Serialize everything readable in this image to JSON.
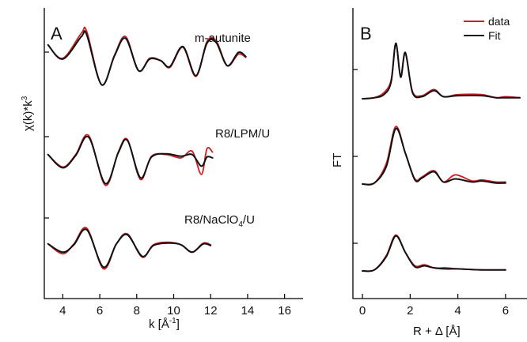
{
  "colors": {
    "data": "#cc1f24",
    "fit": "#111111",
    "axis": "#000000"
  },
  "panel_a": {
    "letter": "A",
    "ylabel_main": "χ(k)*k",
    "ylabel_sup": "3",
    "xlabel_main": "k [Å",
    "xlabel_sup": "-1",
    "xlabel_end": "]",
    "xticks": [
      "4",
      "6",
      "8",
      "10",
      "12",
      "14",
      "16"
    ],
    "labels": {
      "top": "m-autunite",
      "mid": "R8/LPM/U",
      "bot_pre": "R8/NaClO",
      "bot_sub": "4",
      "bot_post": "/U"
    }
  },
  "panel_b": {
    "letter": "B",
    "ylabel": "FT",
    "xlabel": "R + Δ [Å]",
    "xticks": [
      "0",
      "2",
      "4",
      "6"
    ],
    "legend": {
      "data": "data",
      "fit": "Fit"
    }
  },
  "chart_data": [
    {
      "panel": "A",
      "type": "line",
      "xlabel": "k [Å-1]",
      "ylabel": "χ(k)*k3",
      "xlim": [
        3,
        17
      ],
      "series": [
        {
          "name": "data",
          "sample": "m-autunite",
          "x": [
            3.2,
            4.0,
            5.0,
            5.3,
            6.1,
            6.8,
            7.4,
            8.1,
            8.7,
            9.3,
            9.8,
            10.5,
            11.2,
            11.8,
            12.3,
            12.9,
            13.5,
            13.9
          ],
          "y": [
            2.2,
            0.6,
            3.6,
            3.8,
            -2.6,
            1.0,
            3.2,
            -0.9,
            0.6,
            0.3,
            -0.5,
            1.9,
            -1.6,
            2.6,
            2.7,
            -0.3,
            1.1,
            0.7
          ]
        },
        {
          "name": "Fit",
          "sample": "m-autunite",
          "x": [
            3.2,
            4.0,
            5.0,
            5.3,
            6.1,
            6.8,
            7.4,
            8.1,
            8.7,
            9.3,
            9.8,
            10.5,
            11.2,
            11.8,
            12.3,
            12.9,
            13.5,
            13.9
          ],
          "y": [
            2.2,
            0.5,
            3.2,
            3.4,
            -2.6,
            0.9,
            3.0,
            -0.9,
            0.5,
            0.3,
            -0.4,
            2.0,
            -1.5,
            2.4,
            2.5,
            -0.3,
            1.3,
            0.8
          ]
        },
        {
          "name": "data",
          "sample": "R8/LPM/U",
          "x": [
            3.2,
            4.0,
            4.7,
            5.4,
            6.3,
            7.0,
            7.5,
            8.2,
            8.8,
            9.6,
            10.4,
            11.0,
            11.5,
            11.8,
            12.1
          ],
          "y": [
            0.6,
            -0.9,
            0.6,
            2.9,
            -3.1,
            0.9,
            2.4,
            -2.4,
            0.4,
            0.6,
            0.2,
            1.0,
            -1.8,
            1.3,
            0.9
          ]
        },
        {
          "name": "Fit",
          "sample": "R8/LPM/U",
          "x": [
            3.2,
            4.0,
            4.7,
            5.4,
            6.3,
            7.0,
            7.5,
            8.2,
            8.8,
            9.6,
            10.4,
            11.0,
            11.5,
            11.8,
            12.1
          ],
          "y": [
            0.6,
            -1.0,
            0.5,
            2.7,
            -2.9,
            0.8,
            2.3,
            -2.2,
            0.3,
            0.7,
            0.4,
            0.6,
            -0.8,
            0.3,
            0.2
          ]
        },
        {
          "name": "data",
          "sample": "R8/NaClO4/U",
          "x": [
            3.2,
            4.0,
            4.6,
            5.3,
            6.2,
            6.9,
            7.5,
            8.3,
            8.9,
            9.7,
            10.4,
            11.0,
            11.6,
            12.0
          ],
          "y": [
            0.4,
            -0.8,
            0.4,
            2.3,
            -2.6,
            0.4,
            1.6,
            -1.2,
            0.3,
            0.6,
            0.3,
            -0.6,
            0.5,
            0.3
          ]
        },
        {
          "name": "Fit",
          "sample": "R8/NaClO4/U",
          "x": [
            3.2,
            4.0,
            4.6,
            5.3,
            6.2,
            6.9,
            7.5,
            8.3,
            8.9,
            9.7,
            10.4,
            11.0,
            11.6,
            12.0
          ],
          "y": [
            0.4,
            -0.6,
            0.3,
            2.1,
            -2.4,
            0.4,
            1.5,
            -1.1,
            0.2,
            0.5,
            0.3,
            -0.6,
            0.4,
            0.2
          ]
        }
      ]
    },
    {
      "panel": "B",
      "type": "line",
      "xlabel": "R + Δ [Å]",
      "ylabel": "FT",
      "xlim": [
        -0.4,
        6.9
      ],
      "legend": "top-right",
      "series": [
        {
          "name": "data",
          "sample": "top",
          "x": [
            0.0,
            0.5,
            0.9,
            1.2,
            1.4,
            1.6,
            1.8,
            2.1,
            2.5,
            3.0,
            3.4,
            4.0,
            5.0,
            5.6,
            6.0,
            6.6
          ],
          "y": [
            0.0,
            0.1,
            0.6,
            1.8,
            5.3,
            2.2,
            4.4,
            0.7,
            0.3,
            0.9,
            0.2,
            0.4,
            0.4,
            0.1,
            0.2,
            0.1
          ]
        },
        {
          "name": "Fit",
          "sample": "top",
          "x": [
            0.0,
            0.5,
            0.9,
            1.2,
            1.4,
            1.6,
            1.8,
            2.1,
            2.5,
            3.0,
            3.4,
            4.0,
            5.0,
            5.6,
            6.0,
            6.6
          ],
          "y": [
            0.0,
            0.1,
            0.4,
            1.6,
            5.4,
            2.1,
            4.5,
            0.6,
            0.2,
            0.8,
            0.2,
            0.3,
            0.3,
            0.1,
            0.1,
            0.1
          ]
        },
        {
          "name": "data",
          "sample": "middle",
          "x": [
            0.0,
            0.5,
            1.0,
            1.4,
            1.8,
            2.2,
            2.5,
            3.0,
            3.4,
            3.9,
            4.6,
            5.0,
            5.6,
            6.0
          ],
          "y": [
            0.0,
            0.1,
            2.0,
            5.6,
            3.0,
            0.5,
            0.7,
            1.3,
            0.2,
            0.9,
            0.3,
            0.4,
            0.2,
            0.2
          ]
        },
        {
          "name": "Fit",
          "sample": "middle",
          "x": [
            0.0,
            0.5,
            1.0,
            1.4,
            1.8,
            2.2,
            2.5,
            3.0,
            3.4,
            3.9,
            4.6,
            5.0,
            5.6,
            6.0
          ],
          "y": [
            0.0,
            0.1,
            1.7,
            5.4,
            3.0,
            0.4,
            0.6,
            1.2,
            0.2,
            0.5,
            0.2,
            0.3,
            0.1,
            0.1
          ]
        },
        {
          "name": "data",
          "sample": "bottom",
          "x": [
            0.0,
            0.5,
            1.0,
            1.4,
            1.8,
            2.2,
            2.6,
            3.0,
            3.5,
            4.0,
            5.0,
            6.0
          ],
          "y": [
            0.0,
            0.1,
            1.5,
            3.5,
            1.8,
            0.5,
            0.6,
            0.3,
            0.3,
            0.2,
            0.1,
            0.1
          ]
        },
        {
          "name": "Fit",
          "sample": "bottom",
          "x": [
            0.0,
            0.5,
            1.0,
            1.4,
            1.8,
            2.2,
            2.6,
            3.0,
            3.5,
            4.0,
            5.0,
            6.0
          ],
          "y": [
            0.0,
            0.1,
            1.4,
            3.4,
            1.8,
            0.4,
            0.5,
            0.3,
            0.2,
            0.2,
            0.1,
            0.1
          ]
        }
      ]
    }
  ]
}
